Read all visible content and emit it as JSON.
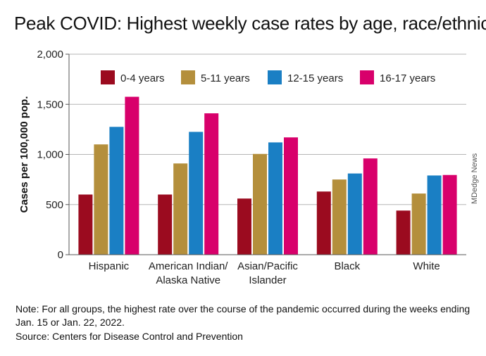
{
  "title": "Peak COVID: Highest weekly case rates by age, race/ethnicity",
  "note": "Note: For all groups, the highest rate over the course of the pandemic occurred during the weeks ending Jan. 15 or Jan. 22, 2022.",
  "source": "Source: Centers for Disease Control and Prevention",
  "credit": "MDedge News",
  "chart_data": {
    "type": "bar",
    "title": "Peak COVID: Highest weekly case rates by age, race/ethnicity",
    "xlabel": "",
    "ylabel": "Cases per 100,000 pop.",
    "ylim": [
      0,
      2000
    ],
    "yticks": [
      0,
      500,
      1000,
      1500,
      2000
    ],
    "ytick_labels": [
      "0",
      "500",
      "1,000",
      "1,500",
      "2,000"
    ],
    "grid": true,
    "legend_position": "top",
    "categories": [
      [
        "Hispanic"
      ],
      [
        "American Indian/",
        "Alaska Native"
      ],
      [
        "Asian/Pacific",
        "Islander"
      ],
      [
        "Black"
      ],
      [
        "White"
      ]
    ],
    "series": [
      {
        "name": "0-4 years",
        "color": "#9b0b1f",
        "values": [
          600,
          600,
          560,
          630,
          440
        ]
      },
      {
        "name": "5-11 years",
        "color": "#b48f3c",
        "values": [
          1100,
          910,
          1005,
          750,
          610
        ]
      },
      {
        "name": "12-15 years",
        "color": "#1a7fc4",
        "values": [
          1275,
          1225,
          1120,
          810,
          790
        ]
      },
      {
        "name": "16-17 years",
        "color": "#d8006b",
        "values": [
          1575,
          1410,
          1170,
          960,
          795
        ]
      }
    ]
  }
}
